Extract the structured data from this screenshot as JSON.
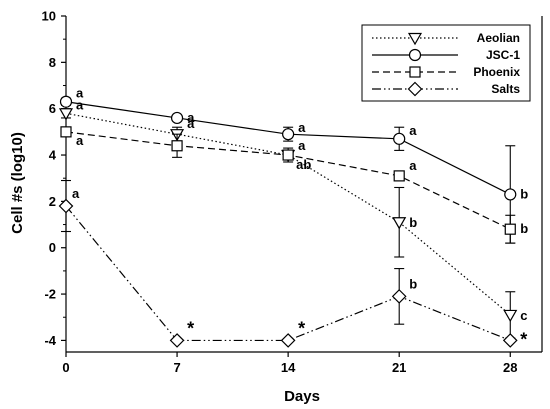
{
  "chart_data": {
    "type": "line",
    "xlabel": "Days",
    "ylabel": "Cell #s (log10)",
    "xlim": [
      0,
      30
    ],
    "ylim": [
      -4.5,
      10
    ],
    "x_ticks": [
      0,
      7,
      14,
      21,
      28
    ],
    "y_ticks": [
      -4,
      -2,
      0,
      2,
      4,
      6,
      8,
      10
    ],
    "grid": false,
    "legend_position": "top-right",
    "series": [
      {
        "name": "Aeolian",
        "marker": "triangle-down",
        "dash": "dotted",
        "x": [
          0,
          7,
          14,
          21,
          28
        ],
        "y": [
          5.8,
          4.9,
          4.0,
          1.1,
          -2.9
        ],
        "err": [
          0.2,
          0.3,
          0.2,
          1.5,
          1.0
        ],
        "letters": [
          "a",
          "a",
          "ab",
          "b",
          "c"
        ]
      },
      {
        "name": "JSC-1",
        "marker": "circle",
        "dash": "solid",
        "x": [
          0,
          7,
          14,
          21,
          28
        ],
        "y": [
          6.3,
          5.6,
          4.9,
          4.7,
          2.3
        ],
        "err": [
          0.15,
          0.1,
          0.3,
          0.5,
          2.1
        ],
        "letters": [
          "a",
          "a",
          "a",
          "a",
          "b"
        ]
      },
      {
        "name": "Phoenix",
        "marker": "square",
        "dash": "dashed",
        "x": [
          0,
          7,
          14,
          21,
          28
        ],
        "y": [
          5.0,
          4.4,
          4.0,
          3.1,
          0.8
        ],
        "err": [
          0.2,
          0.5,
          0.3,
          0.0,
          0.6
        ],
        "letters": [
          "a",
          "",
          "a",
          "a",
          "b"
        ]
      },
      {
        "name": "Salts",
        "marker": "diamond",
        "dash": "dash-dot-dot",
        "x": [
          0,
          7,
          14,
          21,
          28
        ],
        "y": [
          1.8,
          -4.0,
          -4.0,
          -2.1,
          -4.0
        ],
        "err": [
          1.1,
          0.0,
          0.0,
          1.2,
          0.0
        ],
        "letters": [
          "a",
          "*",
          "*",
          "b",
          "*"
        ]
      }
    ]
  }
}
